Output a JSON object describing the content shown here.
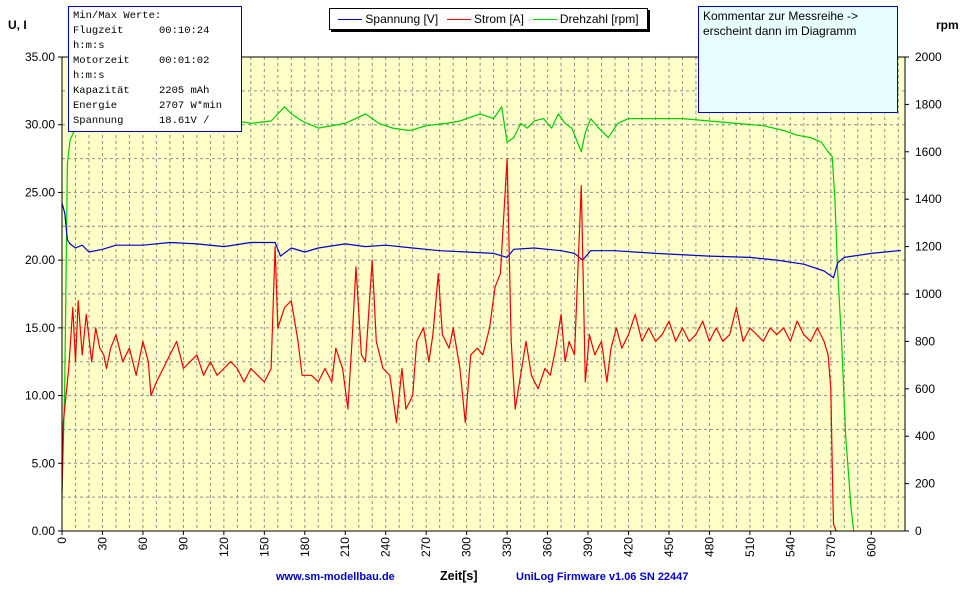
{
  "chart_data": {
    "type": "line",
    "xlabel": "Zeit[s]",
    "ylabel_left": "U, I",
    "ylabel_right": "rpm",
    "xlim": [
      0,
      625
    ],
    "ylim_left": [
      0,
      35
    ],
    "ylim_right": [
      0,
      2000
    ],
    "x_ticks": [
      0,
      30,
      60,
      90,
      120,
      150,
      180,
      210,
      240,
      270,
      300,
      330,
      360,
      390,
      420,
      450,
      480,
      510,
      540,
      570,
      600
    ],
    "y_left_ticks": [
      "0.00",
      "5.00",
      "10.00",
      "15.00",
      "20.00",
      "25.00",
      "30.00",
      "35.00"
    ],
    "y_right_ticks": [
      0,
      200,
      400,
      600,
      800,
      1000,
      1200,
      1400,
      1600,
      1800,
      2000
    ],
    "grid": true,
    "series": [
      {
        "name": "Spannung [V]",
        "axis": "left",
        "color": "#0000cc",
        "points": [
          [
            0,
            24.2
          ],
          [
            2,
            23.5
          ],
          [
            4,
            21.5
          ],
          [
            6,
            21.2
          ],
          [
            10,
            20.9
          ],
          [
            15,
            21.1
          ],
          [
            20,
            20.6
          ],
          [
            30,
            20.8
          ],
          [
            40,
            21.1
          ],
          [
            60,
            21.1
          ],
          [
            80,
            21.3
          ],
          [
            100,
            21.2
          ],
          [
            120,
            21.0
          ],
          [
            140,
            21.3
          ],
          [
            158,
            21.3
          ],
          [
            162,
            20.3
          ],
          [
            170,
            20.9
          ],
          [
            180,
            20.6
          ],
          [
            190,
            20.9
          ],
          [
            210,
            21.2
          ],
          [
            225,
            21.0
          ],
          [
            240,
            21.1
          ],
          [
            260,
            20.9
          ],
          [
            280,
            20.7
          ],
          [
            300,
            20.6
          ],
          [
            320,
            20.5
          ],
          [
            330,
            20.2
          ],
          [
            335,
            20.8
          ],
          [
            350,
            20.9
          ],
          [
            370,
            20.7
          ],
          [
            380,
            20.5
          ],
          [
            386,
            20.0
          ],
          [
            392,
            20.7
          ],
          [
            410,
            20.7
          ],
          [
            440,
            20.5
          ],
          [
            480,
            20.3
          ],
          [
            510,
            20.2
          ],
          [
            530,
            20.0
          ],
          [
            550,
            19.7
          ],
          [
            565,
            19.2
          ],
          [
            572,
            18.7
          ],
          [
            575,
            19.8
          ],
          [
            580,
            20.2
          ],
          [
            600,
            20.5
          ],
          [
            620,
            20.7
          ],
          [
            622,
            20.7
          ]
        ]
      },
      {
        "name": "Strom [A]",
        "axis": "left",
        "color": "#ee0000",
        "points": [
          [
            0,
            3.0
          ],
          [
            1,
            8.0
          ],
          [
            3,
            10.0
          ],
          [
            5,
            12.0
          ],
          [
            8,
            16.5
          ],
          [
            10,
            12.5
          ],
          [
            12,
            17.0
          ],
          [
            15,
            13.0
          ],
          [
            18,
            16.0
          ],
          [
            22,
            12.5
          ],
          [
            25,
            15.0
          ],
          [
            28,
            13.5
          ],
          [
            31,
            13.0
          ],
          [
            33,
            12.0
          ],
          [
            36,
            13.5
          ],
          [
            40,
            14.5
          ],
          [
            45,
            12.5
          ],
          [
            50,
            13.5
          ],
          [
            55,
            11.5
          ],
          [
            60,
            14.0
          ],
          [
            64,
            12.5
          ],
          [
            66,
            10.0
          ],
          [
            70,
            11.0
          ],
          [
            75,
            12.0
          ],
          [
            80,
            13.0
          ],
          [
            85,
            14.0
          ],
          [
            90,
            12.0
          ],
          [
            95,
            12.5
          ],
          [
            100,
            13.0
          ],
          [
            105,
            11.5
          ],
          [
            110,
            12.5
          ],
          [
            115,
            11.5
          ],
          [
            120,
            12.0
          ],
          [
            125,
            12.5
          ],
          [
            130,
            12.0
          ],
          [
            135,
            11.0
          ],
          [
            140,
            12.0
          ],
          [
            145,
            11.5
          ],
          [
            150,
            11.0
          ],
          [
            155,
            12.0
          ],
          [
            158,
            21.0
          ],
          [
            160,
            15.0
          ],
          [
            165,
            16.5
          ],
          [
            170,
            17.0
          ],
          [
            175,
            14.0
          ],
          [
            178,
            11.5
          ],
          [
            185,
            11.5
          ],
          [
            190,
            11.0
          ],
          [
            195,
            12.0
          ],
          [
            200,
            11.0
          ],
          [
            203,
            13.5
          ],
          [
            208,
            12.0
          ],
          [
            212,
            9.0
          ],
          [
            215,
            14.0
          ],
          [
            218,
            19.5
          ],
          [
            222,
            13.0
          ],
          [
            225,
            12.5
          ],
          [
            230,
            20.0
          ],
          [
            233,
            14.0
          ],
          [
            238,
            12.0
          ],
          [
            243,
            11.5
          ],
          [
            248,
            8.0
          ],
          [
            252,
            12.0
          ],
          [
            255,
            9.0
          ],
          [
            260,
            10.0
          ],
          [
            263,
            14.0
          ],
          [
            268,
            15.0
          ],
          [
            272,
            12.5
          ],
          [
            275,
            14.5
          ],
          [
            279,
            19.0
          ],
          [
            282,
            14.5
          ],
          [
            287,
            13.5
          ],
          [
            290,
            15.0
          ],
          [
            295,
            12.0
          ],
          [
            299,
            8.0
          ],
          [
            303,
            13.0
          ],
          [
            308,
            13.5
          ],
          [
            312,
            13.0
          ],
          [
            317,
            15.0
          ],
          [
            321,
            18.0
          ],
          [
            325,
            19.0
          ],
          [
            330,
            27.5
          ],
          [
            333,
            14.0
          ],
          [
            336,
            9.0
          ],
          [
            340,
            11.5
          ],
          [
            344,
            14.0
          ],
          [
            348,
            11.5
          ],
          [
            353,
            10.5
          ],
          [
            358,
            12.0
          ],
          [
            362,
            11.5
          ],
          [
            366,
            13.5
          ],
          [
            370,
            16.0
          ],
          [
            373,
            12.5
          ],
          [
            376,
            14.0
          ],
          [
            380,
            13.0
          ],
          [
            385,
            25.5
          ],
          [
            388,
            11.0
          ],
          [
            391,
            14.5
          ],
          [
            395,
            13.0
          ],
          [
            400,
            14.0
          ],
          [
            404,
            11.0
          ],
          [
            407,
            13.5
          ],
          [
            411,
            15.0
          ],
          [
            415,
            13.5
          ],
          [
            420,
            14.5
          ],
          [
            425,
            16.0
          ],
          [
            430,
            14.0
          ],
          [
            435,
            15.0
          ],
          [
            440,
            14.0
          ],
          [
            445,
            14.5
          ],
          [
            450,
            15.5
          ],
          [
            455,
            14.0
          ],
          [
            460,
            15.0
          ],
          [
            465,
            14.0
          ],
          [
            470,
            14.5
          ],
          [
            475,
            15.5
          ],
          [
            480,
            14.0
          ],
          [
            485,
            15.0
          ],
          [
            490,
            14.0
          ],
          [
            495,
            14.5
          ],
          [
            500,
            16.5
          ],
          [
            505,
            14.0
          ],
          [
            510,
            15.0
          ],
          [
            515,
            14.5
          ],
          [
            520,
            14.0
          ],
          [
            525,
            15.0
          ],
          [
            530,
            14.5
          ],
          [
            535,
            15.0
          ],
          [
            540,
            14.0
          ],
          [
            545,
            15.5
          ],
          [
            550,
            14.5
          ],
          [
            555,
            14.0
          ],
          [
            560,
            15.0
          ],
          [
            565,
            14.0
          ],
          [
            568,
            13.0
          ],
          [
            570,
            10.5
          ],
          [
            571,
            5.0
          ],
          [
            572,
            0.5
          ],
          [
            574,
            0.0
          ]
        ]
      },
      {
        "name": "Drehzahl [rpm]",
        "axis": "right",
        "color": "#00cc00",
        "points": [
          [
            0,
            150
          ],
          [
            2,
            600
          ],
          [
            4,
            1550
          ],
          [
            6,
            1650
          ],
          [
            10,
            1700
          ],
          [
            15,
            1750
          ],
          [
            20,
            1710
          ],
          [
            30,
            1730
          ],
          [
            40,
            1720
          ],
          [
            50,
            1700
          ],
          [
            60,
            1700
          ],
          [
            80,
            1740
          ],
          [
            100,
            1720
          ],
          [
            120,
            1740
          ],
          [
            140,
            1720
          ],
          [
            155,
            1730
          ],
          [
            160,
            1760
          ],
          [
            165,
            1790
          ],
          [
            170,
            1760
          ],
          [
            178,
            1730
          ],
          [
            190,
            1700
          ],
          [
            210,
            1720
          ],
          [
            225,
            1760
          ],
          [
            235,
            1720
          ],
          [
            245,
            1700
          ],
          [
            258,
            1690
          ],
          [
            270,
            1710
          ],
          [
            285,
            1720
          ],
          [
            295,
            1730
          ],
          [
            310,
            1760
          ],
          [
            320,
            1740
          ],
          [
            326,
            1790
          ],
          [
            330,
            1640
          ],
          [
            335,
            1660
          ],
          [
            340,
            1720
          ],
          [
            345,
            1700
          ],
          [
            350,
            1730
          ],
          [
            357,
            1740
          ],
          [
            363,
            1700
          ],
          [
            368,
            1760
          ],
          [
            373,
            1720
          ],
          [
            378,
            1700
          ],
          [
            385,
            1600
          ],
          [
            388,
            1680
          ],
          [
            392,
            1740
          ],
          [
            398,
            1700
          ],
          [
            405,
            1660
          ],
          [
            412,
            1720
          ],
          [
            420,
            1740
          ],
          [
            430,
            1740
          ],
          [
            445,
            1740
          ],
          [
            460,
            1740
          ],
          [
            480,
            1730
          ],
          [
            500,
            1720
          ],
          [
            520,
            1710
          ],
          [
            535,
            1690
          ],
          [
            545,
            1670
          ],
          [
            555,
            1660
          ],
          [
            563,
            1640
          ],
          [
            568,
            1600
          ],
          [
            571,
            1580
          ],
          [
            573,
            1400
          ],
          [
            575,
            1100
          ],
          [
            578,
            800
          ],
          [
            581,
            400
          ],
          [
            585,
            100
          ],
          [
            587,
            0
          ]
        ]
      }
    ]
  },
  "info_box": {
    "title": "Min/Max Werte:",
    "rows": [
      {
        "label": "Flugzeit",
        "value": "00:10:24"
      },
      {
        "label": "h:m:s",
        "value": ""
      },
      {
        "label": "Motorzeit",
        "value": "00:01:02"
      },
      {
        "label": "h:m:s",
        "value": ""
      },
      {
        "label": "Kapazität",
        "value": "2205 mAh"
      },
      {
        "label": "Energie",
        "value": "2707 W*min"
      },
      {
        "label": "Spannung",
        "value": "18.61V /"
      }
    ]
  },
  "comment": {
    "line1": "Kommentar zur Messreihe ->",
    "line2": "erscheint dann im Diagramm"
  },
  "footer": {
    "website": "www.sm-modellbau.de",
    "firmware": "UniLog Firmware v1.06 SN 22447"
  }
}
